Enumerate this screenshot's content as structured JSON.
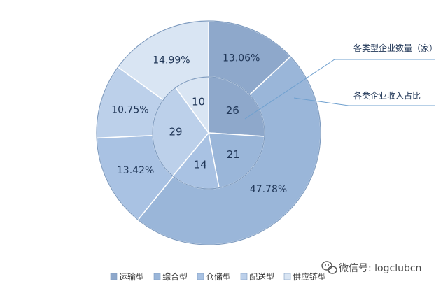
{
  "chart_data": {
    "type": "pie",
    "title": "",
    "categories": [
      "运输型",
      "综合型",
      "仓储型",
      "配送型",
      "供应链型"
    ],
    "colors": [
      "#8ea8cb",
      "#9ab6d9",
      "#a9c2e3",
      "#bcd0ea",
      "#d9e5f3"
    ],
    "series": [
      {
        "name": "各类企业收入占比",
        "ring": "outer",
        "values": [
          13.06,
          47.78,
          13.42,
          10.75,
          14.99
        ],
        "labels": [
          "13.06%",
          "47.78%",
          "13.42%",
          "10.75%",
          "14.99%"
        ]
      },
      {
        "name": "各类型企业数量（家）",
        "ring": "inner",
        "values": [
          26,
          21,
          14,
          29,
          10
        ],
        "labels": [
          "26",
          "21",
          "14",
          "29",
          "10"
        ]
      }
    ],
    "legend": {
      "position": "bottom"
    }
  },
  "watermark": {
    "text": "微信号: logclubcn",
    "icon": "wechat-icon"
  }
}
